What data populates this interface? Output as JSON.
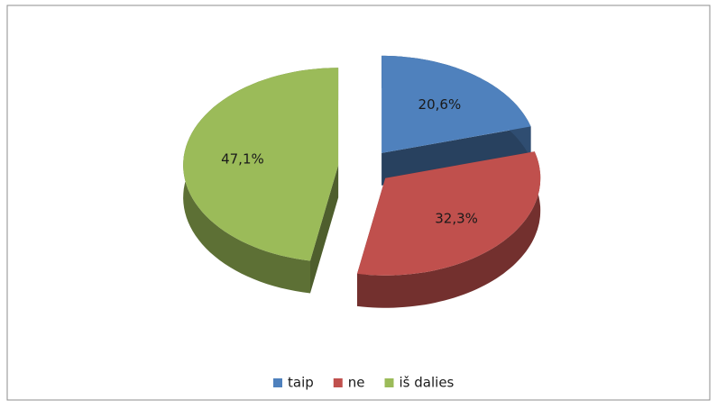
{
  "chart_data": {
    "type": "pie",
    "categories": [
      "taip",
      "ne",
      "iš dalies"
    ],
    "values": [
      20.6,
      32.3,
      47.1
    ],
    "value_labels": [
      "20,6%",
      "32,3%",
      "47,1%"
    ],
    "colors": [
      "#4f81bd",
      "#c0504d",
      "#9bbb59"
    ],
    "legend": "bottom"
  }
}
